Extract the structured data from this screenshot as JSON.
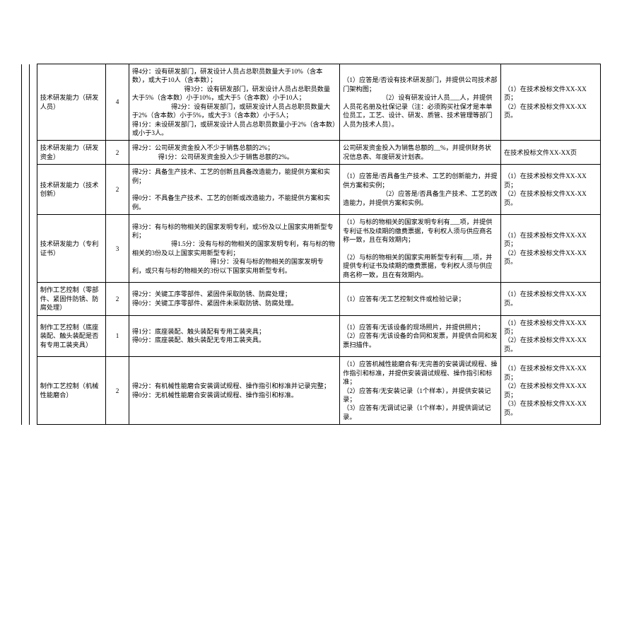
{
  "rows": [
    {
      "name": "技术研发能力（研发人员）",
      "score": "4",
      "criteria": "得4分：设有研发部门，研发设计人员占总职员数量大于10%（含本数），或大于10人（含本数）；\n                                得3分：设有研发部门，研发设计人员占总职员数量大于5%（含本数）小于10%，或大于5（含本数）小于10人；\n                        得2分：设有研发部门，或研发设计人员占总职员数量大于2%（含本数）小于5%，或大于3（含本数）小于5人；\n得1分：未设研发部门，或研发设计人员占总职员数量小于2%（含本数）或小于3人。",
      "requirement": "（1）应答是/否设有技术研发部门，并提供公司技术部门架构图；\n                        （2）设有研发设计人员___人，并提供人员花名册及社保记录（注：必须购买社保才是本单位员工，工艺、设计、研发、质管、技术管理等部门人员为技术人员）。",
      "note": "（1）在技术投标文件XX-XX页；\n（2）在技术投标文件XX-XX页。"
    },
    {
      "name": "技术研发能力（研发资金）",
      "score": "2",
      "criteria": "得2分：公司研发资金投入不少于销售总额的2%；\n                得1分：公司研发资金投入少于销售总额的2%。",
      "requirement": "公司研发资金投入为销售总额的__%，并提供财务状况信息表、年度研发计划表。",
      "note": "在技术投标文件XX-XX页"
    },
    {
      "name": "技术研发能力（技术创新）",
      "score": "2",
      "criteria": "得2分：具备生产技术、工艺的创新且具备改造能力，能提供方案和实例；\n\n得0分：不具备生产技术、工艺的创新或改造能力，不能提供方案和实例。",
      "requirement": "（1）应答是/否具备生产技术、工艺的创新能力，并提供方案和实例；\n                        （2）应答是/否具备生产技术、工艺的改造能力，并提供方案和实例。",
      "note": "（1）在技术投标文件XX-XX页；\n（2）在技术投标文件XX-XX页。"
    },
    {
      "name": "技术研发能力（专利证书）",
      "score": "3",
      "criteria": "得3分：有与标的物相关的国家发明专利，或5份及以上国家实用新型专利；\n                        得1.5分：没有与标的物相关的国家发明专利，有与标的物相关的3份及以上国家实用新型专利；\n                                                得1分：没有与标的物相关的国家发明专利，或只有与标的物相关的3份以下国家实用新型专利。",
      "requirement": "（1）与标的物相关的国家发明专利有___项，并提供专利证书及续期的缴费票据，专利权人须与供应商名称一致，且在有效期内；\n\n（2）与标的物相关的国家实用新型专利有___项，并提供专利证书及续期的缴费票据，专利权人须与供应商名称一致，且在有效期内。",
      "note": "（1）在技术投标文件XX-XX页；\n（2）在技术投标文件XX-XX页。"
    },
    {
      "name": "制作工艺控制（零部件、紧固件防锈、防腐处理）",
      "score": "2",
      "criteria": "得2分：关键工序零部件、紧固件采取防锈、防腐处理；\n得0分：关键工序零部件、紧固件未采取防锈、防腐处理。",
      "requirement": "（1）应答有/无工艺控制文件或检验记录；",
      "note": "（1）在技术投标文件XX-XX页。"
    },
    {
      "name": "制作工艺控制（底座装配、触头装配是否有专用工装夹具）",
      "score": "1",
      "criteria": "得1分：底座装配、触头装配有专用工装夹具；\n得0分：底座装配、触头装配无专用工装夹具。",
      "requirement": "（1）应答有/无该设备的现场照片，并提供照片；\n（2）应答有/无该设备的合同和发票，并提供合同和发票扫描件。",
      "note": "（1）在技术投标文件XX-XX页；\n（2）在技术投标文件XX-XX页。"
    },
    {
      "name": "制作工艺控制（机械性能磨合）",
      "score": "2",
      "criteria": "得2分：有机械性能磨合安装调试规程、操作指引和标准并记录完整；\n得0分：无机械性能磨合安装调试规程、操作指引和标准。",
      "requirement": "（1）应答机械性能磨合有/无完善的安装调试规程、操作指引和标准，并提供安装调试规程、操作指引和标准；\n（2）应答有/无安装记录（1个样本），并提供安装记录；\n（3）应答有/无调试记录（1个样本），并提供调试记录。",
      "note": "（1）在技术投标文件XX-XX页；\n（2）在技术投标文件XX-XX页；\n（3）在技术投标文件XX-XX页。"
    }
  ]
}
